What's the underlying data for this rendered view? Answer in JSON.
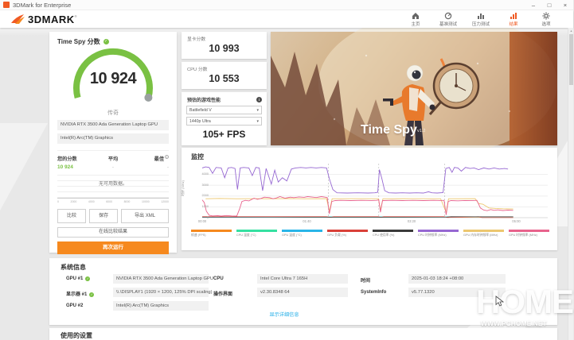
{
  "accent": "#f05a23",
  "accent_button": "#f6891e",
  "green": "#7ac143",
  "link_color": "#29b0e8",
  "window": {
    "title": "3DMark for Enterprise",
    "minimize": "–",
    "maximize": "□",
    "close": "×"
  },
  "header": {
    "logo": "3DMARK",
    "trademark": "®",
    "nav": [
      {
        "label": "主页"
      },
      {
        "label": "基准测试"
      },
      {
        "label": "压力测试"
      },
      {
        "label": "结果"
      },
      {
        "label": "选项"
      }
    ]
  },
  "score_panel": {
    "title": "Time Spy 分数",
    "score": "10 924",
    "tier": "传奇",
    "gpu1": "NVIDIA RTX 3500 Ada Generation Laptop GPU",
    "gpu2": "Intel(R) Arc(TM) Graphics",
    "compare": {
      "your_label": "您的分数",
      "avg_label": "平均",
      "best_label": "最佳",
      "your_value": "10 924",
      "avg_value": "-",
      "best_value": "-",
      "no_data": "无可用数据。",
      "axis": [
        "0",
        "2000",
        "4000",
        "6000",
        "8000",
        "10000",
        "12000"
      ]
    },
    "buttons": {
      "compare": "比较",
      "save": "保存",
      "export_xml": "导出 XML",
      "online": "在线比较结果",
      "run_again": "再次运行"
    }
  },
  "scores": {
    "graphics_label": "显卡分数",
    "graphics_value": "10 993",
    "cpu_label": "CPU 分数",
    "cpu_value": "10 553"
  },
  "game_perf": {
    "title": "预估的游戏性能",
    "game": "Battlefield V",
    "quality": "1440p Ultra",
    "fps": "105+ FPS"
  },
  "hero": {
    "title": "Time Spy",
    "version": "v1.2"
  },
  "monitor": {
    "title": "监控"
  },
  "chart_data": {
    "type": "line",
    "title": "监控",
    "ylabel": "时钟 (MHz)",
    "ylim": [
      0,
      5000
    ],
    "yticks": [
      0,
      1000,
      2000,
      3000,
      4000
    ],
    "xticks": [
      "00:00",
      "01:40",
      "03:20",
      "05:00"
    ],
    "xtick_pos": [
      0,
      0.303,
      0.606,
      0.909
    ],
    "dividers": [
      0.365,
      0.511,
      0.702
    ],
    "legend": [
      {
        "label": "帧速 (FPS)",
        "color": "#f6891e"
      },
      {
        "label": "CPU 温度 (°C)",
        "color": "#35e0a1"
      },
      {
        "label": "GPU 温度 (°C)",
        "color": "#29b5e8"
      },
      {
        "label": "GPU 负载 (%)",
        "color": "#d94038"
      },
      {
        "label": "CPU 使用率 (%)",
        "color": "#3a3a3a"
      },
      {
        "label": "CPU 时钟频率 (MHz)",
        "color": "#9668d2"
      },
      {
        "label": "GPU 内存时钟频率 (MHz)",
        "color": "#ecc76f"
      },
      {
        "label": "GPU 时钟频率 (MHz)",
        "color": "#e8638c"
      }
    ],
    "series": [
      {
        "name": "帧速 (FPS)",
        "color": "#f6891e",
        "width": 0.6,
        "points": [
          [
            0,
            70
          ],
          [
            0.2,
            68
          ],
          [
            0.36,
            64
          ],
          [
            0.5,
            60
          ],
          [
            0.7,
            62
          ],
          [
            0.75,
            40
          ],
          [
            0.9,
            30
          ]
        ]
      },
      {
        "name": "CPU 温度 (°C)",
        "color": "#35e0a1",
        "width": 0.6,
        "points": [
          [
            0,
            72
          ],
          [
            0.3,
            78
          ],
          [
            0.6,
            82
          ],
          [
            0.9,
            86
          ]
        ]
      },
      {
        "name": "GPU 温度 (°C)",
        "color": "#29b5e8",
        "width": 0.6,
        "points": [
          [
            0,
            62
          ],
          [
            0.3,
            72
          ],
          [
            0.6,
            74
          ],
          [
            0.9,
            70
          ]
        ]
      },
      {
        "name": "GPU 负载 (%)",
        "color": "#d94038",
        "width": 0.6,
        "points": [
          [
            0,
            97
          ],
          [
            0.18,
            98
          ],
          [
            0.36,
            97
          ],
          [
            0.372,
            30
          ],
          [
            0.38,
            97
          ],
          [
            0.51,
            98
          ],
          [
            0.517,
            40
          ],
          [
            0.525,
            97
          ],
          [
            0.7,
            98
          ],
          [
            0.71,
            15
          ],
          [
            0.8,
            97
          ],
          [
            0.81,
            10
          ],
          [
            0.9,
            8
          ]
        ]
      },
      {
        "name": "CPU 使用率 (%)",
        "color": "#3a3a3a",
        "width": 0.6,
        "points": [
          [
            0,
            45
          ],
          [
            0.2,
            35
          ],
          [
            0.36,
            30
          ],
          [
            0.5,
            32
          ],
          [
            0.7,
            35
          ],
          [
            0.72,
            95
          ],
          [
            0.8,
            90
          ],
          [
            0.9,
            85
          ]
        ]
      },
      {
        "name": "GPU 内存时钟频率 (MHz)",
        "color": "#ecc76f",
        "width": 0.9,
        "points": [
          [
            0.01,
            1750
          ],
          [
            0.05,
            1780
          ],
          [
            0.1,
            1750
          ],
          [
            0.15,
            1760
          ],
          [
            0.2,
            1750
          ],
          [
            0.25,
            1770
          ],
          [
            0.3,
            1750
          ],
          [
            0.36,
            1760
          ],
          [
            0.368,
            600
          ],
          [
            0.376,
            1750
          ],
          [
            0.45,
            1760
          ],
          [
            0.51,
            1750
          ],
          [
            0.516,
            700
          ],
          [
            0.523,
            1750
          ],
          [
            0.6,
            1760
          ],
          [
            0.69,
            1750
          ],
          [
            0.706,
            500
          ],
          [
            0.713,
            1750
          ],
          [
            0.79,
            1760
          ],
          [
            0.8,
            1300
          ],
          [
            0.812,
            1250
          ],
          [
            0.83,
            900
          ],
          [
            0.85,
            850
          ],
          [
            0.87,
            820
          ],
          [
            0.9,
            800
          ]
        ]
      },
      {
        "name": "GPU 时钟频率 (MHz)",
        "color": "#e8638c",
        "width": 0.9,
        "points": [
          [
            0,
            1650
          ],
          [
            0.006,
            1400
          ],
          [
            0.012,
            600
          ],
          [
            0.02,
            220
          ],
          [
            0.03,
            160
          ],
          [
            0.045,
            190
          ],
          [
            0.055,
            150
          ],
          [
            0.07,
            200
          ],
          [
            0.085,
            160
          ],
          [
            0.1,
            150
          ],
          [
            0.108,
            800
          ],
          [
            0.115,
            1500
          ],
          [
            0.125,
            1600
          ],
          [
            0.135,
            1550
          ],
          [
            0.15,
            1800
          ],
          [
            0.16,
            1700
          ],
          [
            0.17,
            1780
          ],
          [
            0.18,
            1900
          ],
          [
            0.195,
            1850
          ],
          [
            0.205,
            1750
          ],
          [
            0.215,
            1820
          ],
          [
            0.225,
            1950
          ],
          [
            0.24,
            1800
          ],
          [
            0.255,
            1900
          ],
          [
            0.265,
            1850
          ],
          [
            0.28,
            1920
          ],
          [
            0.295,
            1880
          ],
          [
            0.305,
            1950
          ],
          [
            0.32,
            1900
          ],
          [
            0.33,
            1860
          ],
          [
            0.345,
            1950
          ],
          [
            0.355,
            1900
          ],
          [
            0.362,
            1850
          ],
          [
            0.368,
            350
          ],
          [
            0.375,
            1500
          ],
          [
            0.385,
            1580
          ],
          [
            0.4,
            1600
          ],
          [
            0.43,
            1580
          ],
          [
            0.46,
            1600
          ],
          [
            0.49,
            1590
          ],
          [
            0.505,
            1600
          ],
          [
            0.511,
            1650
          ],
          [
            0.516,
            500
          ],
          [
            0.522,
            1580
          ],
          [
            0.55,
            1600
          ],
          [
            0.58,
            1580
          ],
          [
            0.61,
            1600
          ],
          [
            0.64,
            1580
          ],
          [
            0.67,
            1600
          ],
          [
            0.69,
            1590
          ],
          [
            0.7,
            1600
          ],
          [
            0.706,
            250
          ],
          [
            0.712,
            1500
          ],
          [
            0.72,
            1580
          ],
          [
            0.74,
            1560
          ],
          [
            0.76,
            1590
          ],
          [
            0.78,
            1570
          ],
          [
            0.795,
            1600
          ],
          [
            0.805,
            900
          ],
          [
            0.815,
            700
          ],
          [
            0.825,
            650
          ],
          [
            0.835,
            750
          ],
          [
            0.845,
            680
          ],
          [
            0.855,
            720
          ],
          [
            0.87,
            660
          ],
          [
            0.885,
            700
          ],
          [
            0.9,
            680
          ]
        ]
      },
      {
        "name": "CPU 时钟频率 (MHz)",
        "color": "#9668d2",
        "width": 0.9,
        "points": [
          [
            0,
            4600
          ],
          [
            0.01,
            4700
          ],
          [
            0.02,
            4650
          ],
          [
            0.03,
            4100
          ],
          [
            0.04,
            4650
          ],
          [
            0.055,
            4600
          ],
          [
            0.065,
            3700
          ],
          [
            0.075,
            4600
          ],
          [
            0.085,
            4650
          ],
          [
            0.095,
            4550
          ],
          [
            0.102,
            2600
          ],
          [
            0.11,
            4600
          ],
          [
            0.12,
            4650
          ],
          [
            0.135,
            4600
          ],
          [
            0.145,
            3900
          ],
          [
            0.155,
            4650
          ],
          [
            0.165,
            4600
          ],
          [
            0.175,
            2500
          ],
          [
            0.185,
            4550
          ],
          [
            0.2,
            3100
          ],
          [
            0.21,
            4400
          ],
          [
            0.22,
            3300
          ],
          [
            0.232,
            3700
          ],
          [
            0.245,
            3400
          ],
          [
            0.258,
            4500
          ],
          [
            0.27,
            4600
          ],
          [
            0.285,
            4650
          ],
          [
            0.3,
            4600
          ],
          [
            0.315,
            4650
          ],
          [
            0.33,
            4600
          ],
          [
            0.345,
            4650
          ],
          [
            0.36,
            4600
          ],
          [
            0.368,
            3600
          ],
          [
            0.378,
            2600
          ],
          [
            0.39,
            2300
          ],
          [
            0.42,
            2280
          ],
          [
            0.45,
            2300
          ],
          [
            0.48,
            2280
          ],
          [
            0.5,
            2300
          ],
          [
            0.508,
            2350
          ],
          [
            0.513,
            4450
          ],
          [
            0.52,
            3600
          ],
          [
            0.528,
            2500
          ],
          [
            0.54,
            2300
          ],
          [
            0.56,
            2280
          ],
          [
            0.58,
            2300
          ],
          [
            0.6,
            2280
          ],
          [
            0.62,
            2300
          ],
          [
            0.64,
            2280
          ],
          [
            0.655,
            2400
          ],
          [
            0.665,
            2300
          ],
          [
            0.68,
            2280
          ],
          [
            0.697,
            2320
          ],
          [
            0.705,
            4550
          ],
          [
            0.715,
            4650
          ],
          [
            0.723,
            4200
          ],
          [
            0.73,
            4650
          ],
          [
            0.74,
            4600
          ],
          [
            0.75,
            4300
          ],
          [
            0.762,
            4650
          ],
          [
            0.775,
            4550
          ],
          [
            0.787,
            4600
          ],
          [
            0.8,
            4450
          ],
          [
            0.815,
            4600
          ],
          [
            0.83,
            4500
          ],
          [
            0.845,
            4600
          ],
          [
            0.86,
            4500
          ],
          [
            0.875,
            4550
          ],
          [
            0.885,
            4500
          ]
        ]
      }
    ]
  },
  "system_info": {
    "title": "系统信息",
    "col1": [
      {
        "label": "GPU #1",
        "check": true,
        "value": "NVIDIA RTX 3500 Ada Generation Laptop GPU"
      },
      {
        "label": "显示器 #1",
        "check": true,
        "value": "\\\\.\\DISPLAY1 (1920 × 1200, 125% DPI scaling)"
      },
      {
        "label": "GPU #2",
        "check": false,
        "value": "Intel(R) Arc(TM) Graphics"
      }
    ],
    "col2": [
      {
        "label": "CPU",
        "check": false,
        "value": "Intel Core Ultra 7 165H"
      },
      {
        "label": "操作界面",
        "check": false,
        "value": "v2.30.8348 64"
      }
    ],
    "col3": [
      {
        "label": "时间",
        "check": false,
        "value": "2025-01-03 18:24 +08:00"
      },
      {
        "label": "SystemInfo",
        "check": false,
        "value": "v5.77.1320"
      }
    ],
    "details_link": "显示详细信息"
  },
  "settings_section": {
    "title": "使用的设置"
  },
  "watermark": {
    "big": "HOME",
    "small": "WWW.PCHOME.NET"
  },
  "icons": {
    "gear": "⚙",
    "caret": "▾",
    "check": "✓",
    "info": "i",
    "scroll_up": "▲"
  }
}
